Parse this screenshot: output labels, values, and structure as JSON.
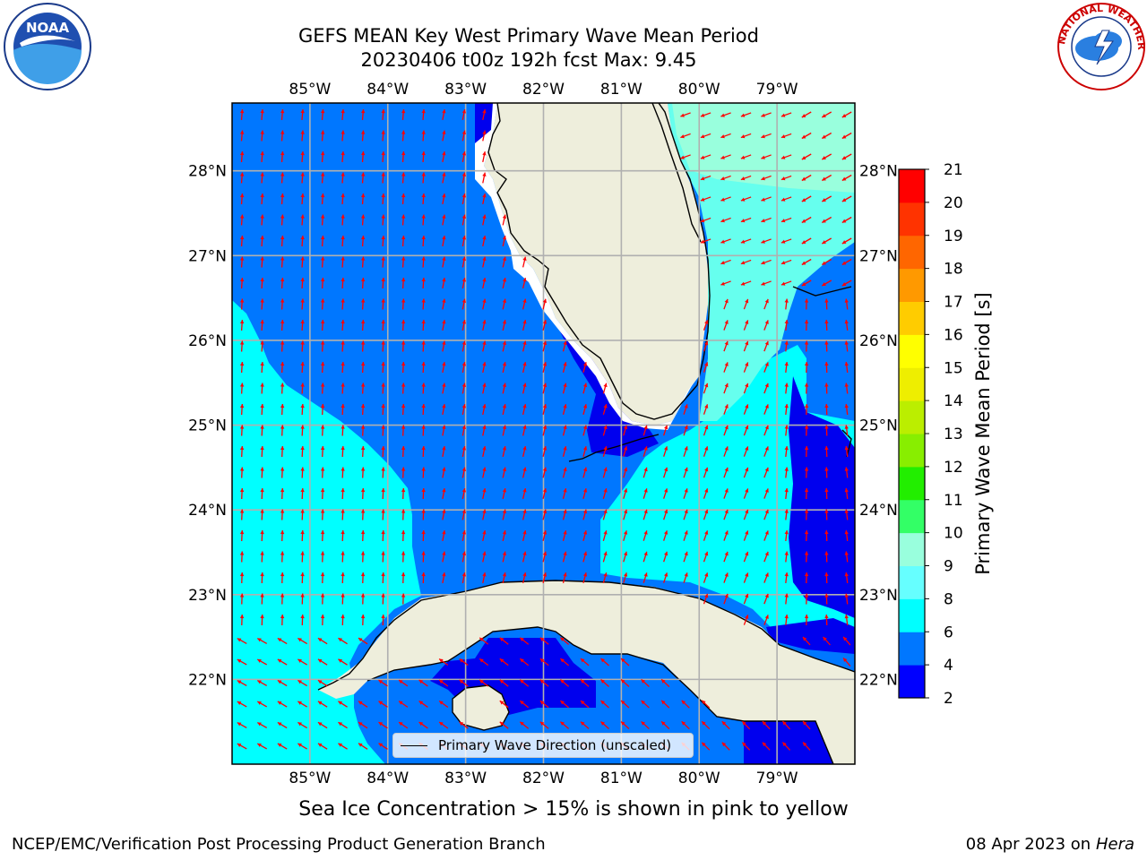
{
  "title": {
    "line1": "GEFS MEAN Key West Primary Wave Mean Period",
    "line2": "20230406 t00z 192h fcst   Max: 9.45"
  },
  "map": {
    "lon_labels": [
      "85°W",
      "84°W",
      "83°W",
      "82°W",
      "81°W",
      "80°W",
      "79°W"
    ],
    "lat_labels": [
      "28°N",
      "27°N",
      "26°N",
      "25°N",
      "24°N",
      "23°N",
      "22°N"
    ],
    "lon_range": [
      -86.0,
      -78.0
    ],
    "lat_range": [
      21.0,
      28.8
    ],
    "grid": true,
    "colors": {
      "land": "#eeeedc",
      "band_2_4": "#0000ee",
      "band_4_6": "#0077ff",
      "band_6_8": "#00ffff",
      "band_8_9": "#66ffee",
      "band_9_10": "#99ffdd",
      "arrow": "#ff0000",
      "gridline": "#b0b0b0"
    },
    "arrow_field": "primary wave direction"
  },
  "colorbar": {
    "label": "Primary Wave Mean Period [s]",
    "ticks": [
      "2",
      "4",
      "6",
      "8",
      "9",
      "10",
      "11",
      "12",
      "13",
      "14",
      "15",
      "16",
      "17",
      "18",
      "19",
      "20",
      "21"
    ],
    "boundaries": [
      2,
      4,
      6,
      8,
      9,
      10,
      11,
      12,
      13,
      14,
      15,
      16,
      17,
      18,
      19,
      20,
      21
    ],
    "colors": [
      "#0000ff",
      "#0077ff",
      "#00ffff",
      "#66ffff",
      "#99ffdd",
      "#33ff66",
      "#22ee00",
      "#88ee00",
      "#bbee00",
      "#eeee00",
      "#ffff00",
      "#ffcc00",
      "#ff9900",
      "#ff6600",
      "#ff3300",
      "#ff0000"
    ]
  },
  "legend": {
    "label": "Primary Wave Direction (unscaled)"
  },
  "footer": {
    "sea_ice_note": "Sea Ice Concentration > 15% is shown in pink to yellow",
    "credit": "NCEP/EMC/Verification Post Processing Product Generation Branch",
    "date": "08 Apr 2023 on",
    "machine": "Hera"
  },
  "logos": {
    "left": {
      "text": "NOAA",
      "icon": "noaa-logo-icon"
    },
    "right": {
      "text": "NATIONAL WEATHER SERVICE",
      "icon": "nws-logo-icon"
    }
  }
}
